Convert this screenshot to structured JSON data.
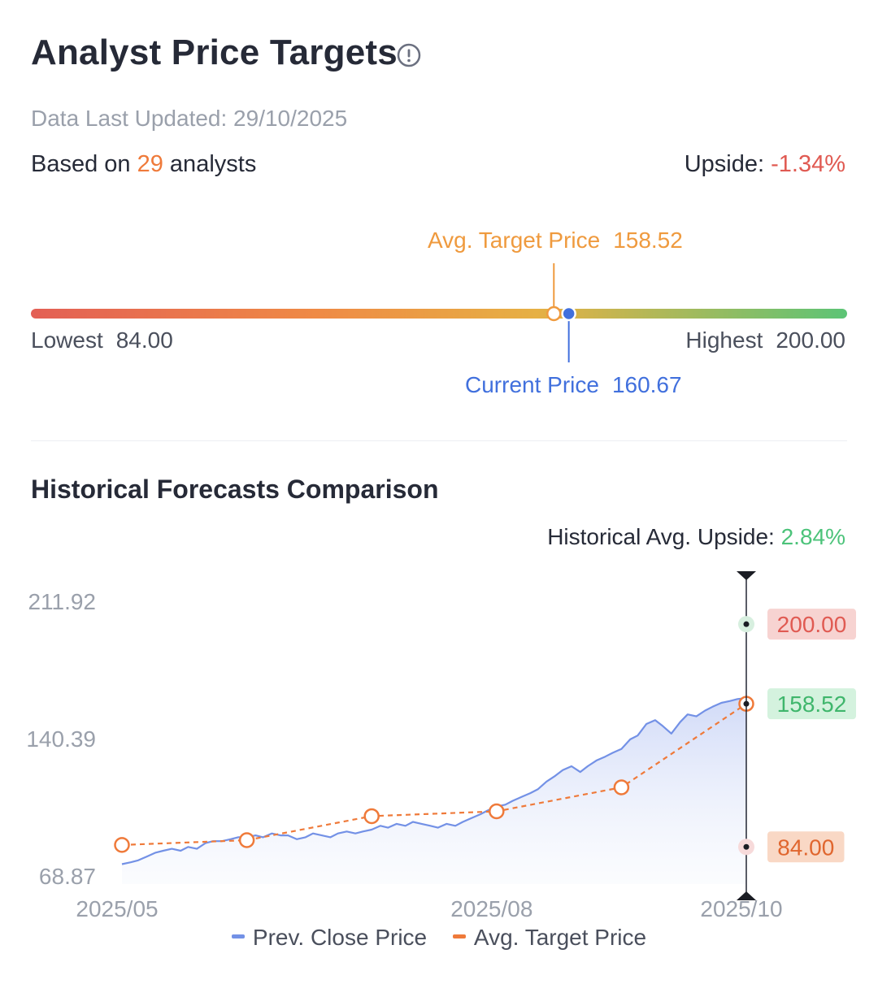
{
  "header": {
    "title": "Analyst Price Targets",
    "updated": "Data Last Updated: 29/10/2025",
    "based_prefix": "Based on ",
    "analyst_count": "29",
    "based_suffix": " analysts",
    "upside_label": "Upside: ",
    "upside_value": "-1.34%"
  },
  "range": {
    "avg_label": "Avg. Target Price",
    "avg_value": "158.52",
    "current_label": "Current Price",
    "current_value": "160.67",
    "lowest_label": "Lowest",
    "lowest_value": "84.00",
    "highest_label": "Highest",
    "highest_value": "200.00",
    "min": 84.0,
    "max": 200.0,
    "avg": 158.52,
    "current": 160.67
  },
  "section": {
    "title": "Historical Forecasts Comparison",
    "hist_upside_label": "Historical Avg. Upside: ",
    "hist_upside_value": "2.84%"
  },
  "legend": {
    "close": "Prev. Close Price",
    "target": "Avg. Target Price"
  },
  "colors": {
    "close_line": "#7391e6",
    "target_line": "#ef7a3a",
    "current_marker": "#4170dd",
    "high_tag_bg": "#f7d3d1",
    "high_tag_text": "#e05a52",
    "avg_tag_bg": "#d4f2de",
    "avg_tag_text": "#3fb66c",
    "low_tag_bg": "#f9d8c5",
    "low_tag_text": "#e0662e"
  },
  "chart_data": {
    "type": "line",
    "y_ticks": [
      "211.92",
      "140.39",
      "68.87"
    ],
    "ylim": [
      68.87,
      211.92
    ],
    "x_ticks": [
      "2025/05",
      "2025/08",
      "2025/10"
    ],
    "x_range_months": [
      5,
      10
    ],
    "series": [
      {
        "name": "Prev. Close Price",
        "x": [
          5.0,
          5.07,
          5.13,
          5.2,
          5.27,
          5.33,
          5.4,
          5.47,
          5.53,
          5.6,
          5.67,
          5.73,
          5.8,
          5.87,
          5.93,
          6.0,
          6.07,
          6.13,
          6.2,
          6.27,
          6.33,
          6.4,
          6.47,
          6.53,
          6.6,
          6.67,
          6.73,
          6.8,
          6.87,
          6.93,
          7.0,
          7.07,
          7.13,
          7.2,
          7.27,
          7.33,
          7.4,
          7.47,
          7.53,
          7.6,
          7.67,
          7.73,
          7.8,
          7.87,
          7.93,
          8.0,
          8.07,
          8.13,
          8.2,
          8.27,
          8.33,
          8.4,
          8.47,
          8.53,
          8.6,
          8.67,
          8.73,
          8.8,
          8.87,
          8.93,
          9.0,
          9.07,
          9.13,
          9.2,
          9.27,
          9.33,
          9.4,
          9.47,
          9.53,
          9.6,
          9.67,
          9.73,
          9.8,
          9.87,
          9.93,
          10.0
        ],
        "values": [
          75,
          76,
          77,
          79,
          81,
          82,
          83,
          82,
          84,
          83,
          86,
          87,
          87,
          88,
          89,
          89,
          90,
          89,
          91,
          90,
          90,
          88,
          89,
          91,
          90,
          89,
          91,
          92,
          91,
          92,
          93,
          95,
          94,
          96,
          95,
          97,
          96,
          95,
          94,
          96,
          95,
          97,
          99,
          101,
          103,
          105,
          106,
          108,
          110,
          112,
          114,
          118,
          121,
          124,
          126,
          123,
          126,
          129,
          131,
          133,
          135,
          140,
          142,
          148,
          150,
          147,
          143,
          149,
          153,
          152,
          155,
          157,
          159,
          160,
          161,
          161.5
        ]
      },
      {
        "name": "Avg. Target Price",
        "x": [
          5.0,
          6.0,
          7.0,
          8.0,
          9.0,
          10.0
        ],
        "values": [
          85.0,
          87.5,
          100.0,
          102.5,
          115.0,
          158.52
        ]
      }
    ],
    "last_point_markers": {
      "highest": "200.00",
      "average": "158.52",
      "lowest": "84.00"
    },
    "legend_position": "bottom-center",
    "grid": false
  }
}
